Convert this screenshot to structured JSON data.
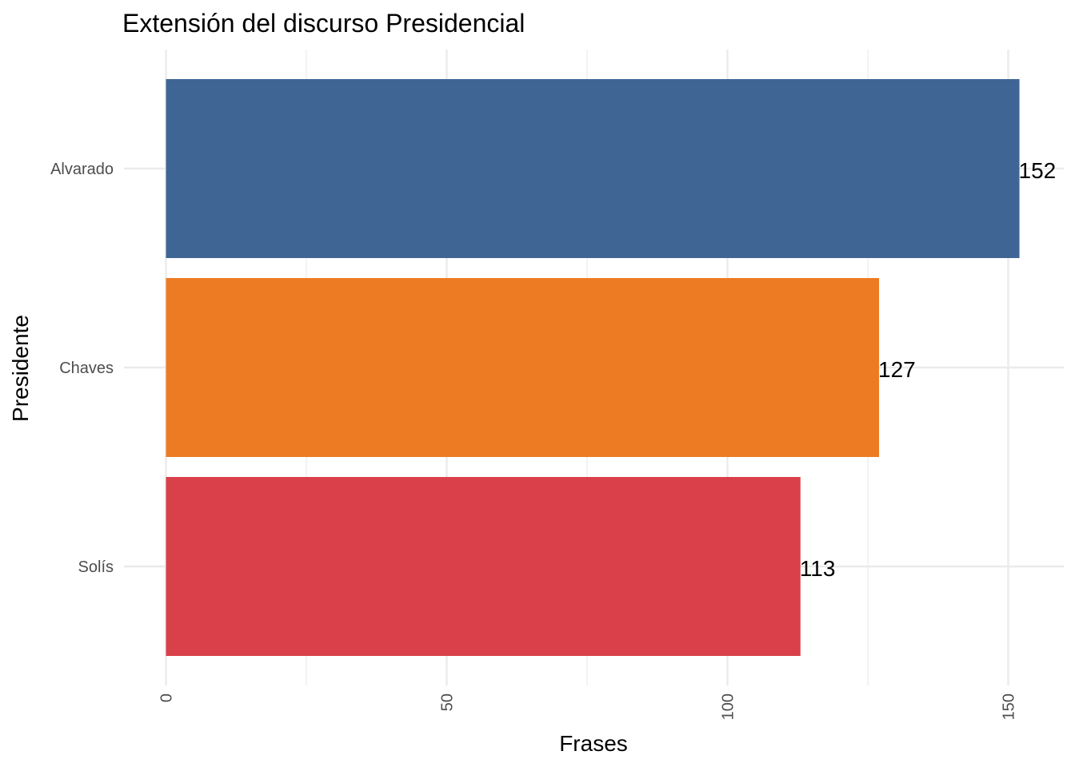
{
  "chart_data": {
    "type": "bar",
    "orientation": "horizontal",
    "title": "Extensión del discurso Presidencial",
    "xlabel": "Frases",
    "ylabel": "Presidente",
    "categories": [
      "Alvarado",
      "Chaves",
      "Solís"
    ],
    "values": [
      152,
      127,
      113
    ],
    "data_labels": [
      "152",
      "127",
      "113"
    ],
    "colors": [
      "#3f6594",
      "#ec7b24",
      "#d94049"
    ],
    "xlim": [
      0,
      155
    ],
    "x_ticks": [
      0,
      50,
      100,
      150
    ],
    "x_tick_labels": [
      "0",
      "50",
      "100",
      "150"
    ],
    "x_tick_label_rotation": "vertical",
    "grid": true,
    "legend": "none"
  }
}
